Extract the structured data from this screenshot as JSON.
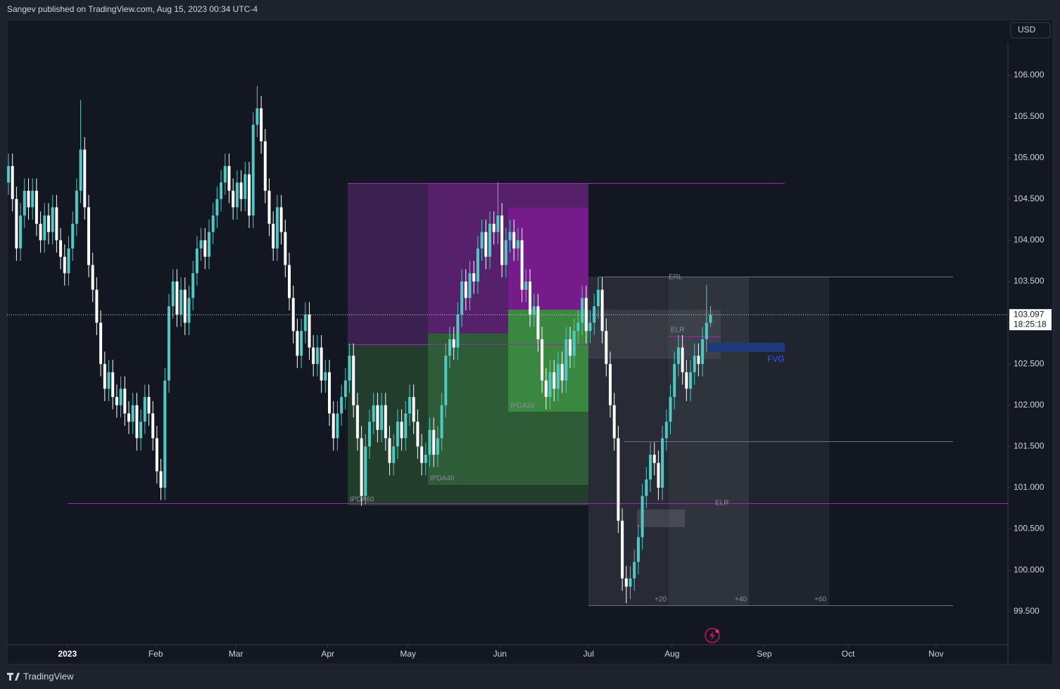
{
  "header": {
    "title": "Sangev published on TradingView.com, Aug 15, 2023 00:34 UTC-4"
  },
  "footer": {
    "brand": "TradingView"
  },
  "chart_data": {
    "type": "candlestick",
    "currency": "USD",
    "up_color": "#4fc9c4",
    "down_color": "#ffffff",
    "grid": false,
    "last_price": 103.097,
    "countdown": "18:25:18",
    "annotations": [
      "ERL",
      "ELR",
      "ELR",
      "FVG",
      "IPDA20",
      "IPDA40",
      "IPDA60",
      "+20",
      "+40",
      "+60"
    ],
    "xlim": [
      -0.35,
      249.12
    ],
    "xticks": [
      {
        "value": 14.7,
        "label": "2023"
      },
      {
        "value": 36.7,
        "label": "Feb"
      },
      {
        "value": 56.7,
        "label": "Mar"
      },
      {
        "value": 79.6,
        "label": "Apr"
      },
      {
        "value": 99.6,
        "label": "May"
      },
      {
        "value": 122.5,
        "label": "Jun"
      },
      {
        "value": 144.6,
        "label": "Jul"
      },
      {
        "value": 165.4,
        "label": "Aug"
      },
      {
        "value": 188.4,
        "label": "Sep"
      },
      {
        "value": 209.3,
        "label": "Oct"
      },
      {
        "value": 231.2,
        "label": "Nov"
      }
    ],
    "ylim": [
      99.097,
      106.674
    ],
    "yticks": [
      {
        "value": 99.5,
        "label": "99.500"
      },
      {
        "value": 100,
        "label": "100.000"
      },
      {
        "value": 100.5,
        "label": "100.500"
      },
      {
        "value": 101,
        "label": "101.000"
      },
      {
        "value": 101.5,
        "label": "101.500"
      },
      {
        "value": 102,
        "label": "102.000"
      },
      {
        "value": 102.5,
        "label": "102.500"
      },
      {
        "value": 103,
        "label": "103.000"
      },
      {
        "value": 103.5,
        "label": "103.500"
      },
      {
        "value": 104,
        "label": "104.000"
      },
      {
        "value": 104.5,
        "label": "104.500"
      },
      {
        "value": 105,
        "label": "105.000"
      },
      {
        "value": 105.5,
        "label": "105.500"
      },
      {
        "value": 106,
        "label": "106.000"
      }
    ],
    "open": [
      104.7,
      104.9,
      104.5,
      103.9,
      104.3,
      104.6,
      104.4,
      104.6,
      104.2,
      104.0,
      104.3,
      104.1,
      104.4,
      104.0,
      103.8,
      103.6,
      103.9,
      104.2,
      104.6,
      105.1,
      104.4,
      103.7,
      103.4,
      103.0,
      102.5,
      102.2,
      102.4,
      102.1,
      102.0,
      102.2,
      101.9,
      101.8,
      102.0,
      101.6,
      101.8,
      102.1,
      101.9,
      101.6,
      101.2,
      101.0,
      102.3,
      103.2,
      103.5,
      103.1,
      103.4,
      103.0,
      103.3,
      103.6,
      103.9,
      104.0,
      103.8,
      104.1,
      104.3,
      104.5,
      104.7,
      104.9,
      104.6,
      104.4,
      104.7,
      104.5,
      104.8,
      104.3,
      105.4,
      105.6,
      105.2,
      104.6,
      104.2,
      103.9,
      104.4,
      104.1,
      103.7,
      103.3,
      102.9,
      102.6,
      102.9,
      103.1,
      102.7,
      102.5,
      102.7,
      102.3,
      102.4,
      101.9,
      101.6,
      101.9,
      102.1,
      102.3,
      102.6,
      102.0,
      101.6,
      100.9,
      101.5,
      101.8,
      102.0,
      101.7,
      102.0,
      101.6,
      101.3,
      101.5,
      101.8,
      101.6,
      101.9,
      102.1,
      101.8,
      101.5,
      101.3,
      101.4,
      101.7,
      101.4,
      101.6,
      102.0,
      102.6,
      102.8,
      102.7,
      103.1,
      103.5,
      103.3,
      103.6,
      103.5,
      103.9,
      104.1,
      103.8,
      104.2,
      104.1,
      104.3,
      103.7,
      104.0,
      104.1,
      103.9,
      104.0,
      103.4,
      103.5,
      103.1,
      103.2,
      102.8,
      102.3,
      102.1,
      102.4,
      102.2,
      102.5,
      102.3,
      102.8,
      102.6,
      102.9,
      103.0,
      103.3,
      102.9,
      103.0,
      103.2,
      103.4,
      102.9,
      102.5,
      102.0,
      101.6,
      100.6,
      99.9,
      99.8,
      99.9,
      100.1,
      100.4,
      100.9,
      101.1,
      101.4,
      101.3,
      101.0,
      101.6,
      101.8,
      102.1,
      102.5,
      102.7,
      102.4,
      102.2,
      102.4,
      102.6,
      102.5,
      102.8,
      103.0
    ],
    "high": [
      105.05,
      105.05,
      104.65,
      104.45,
      104.75,
      104.75,
      104.75,
      104.75,
      104.35,
      104.45,
      104.45,
      104.55,
      104.55,
      104.15,
      103.95,
      104.05,
      104.35,
      104.75,
      105.7,
      105.25,
      104.55,
      103.85,
      103.55,
      103.15,
      102.65,
      102.55,
      102.55,
      102.25,
      102.35,
      102.35,
      102.05,
      102.15,
      102.15,
      101.95,
      102.25,
      102.25,
      102.05,
      101.75,
      101.35,
      102.45,
      103.35,
      103.65,
      103.65,
      103.55,
      103.55,
      103.45,
      103.75,
      104.05,
      104.15,
      104.15,
      104.25,
      104.45,
      104.65,
      104.85,
      105.05,
      105.05,
      104.75,
      104.85,
      104.85,
      104.95,
      104.95,
      105.55,
      105.87,
      105.75,
      105.35,
      104.75,
      104.35,
      104.55,
      104.55,
      104.25,
      103.85,
      103.45,
      103.05,
      103.05,
      103.25,
      103.25,
      102.85,
      102.85,
      102.85,
      102.55,
      102.55,
      102.05,
      102.05,
      102.25,
      102.45,
      102.75,
      102.75,
      102.15,
      101.75,
      101.65,
      101.95,
      102.15,
      102.15,
      102.15,
      102.15,
      101.75,
      101.65,
      101.95,
      101.95,
      102.05,
      102.25,
      102.25,
      101.95,
      101.65,
      101.55,
      101.85,
      101.85,
      101.75,
      102.15,
      102.75,
      102.95,
      102.95,
      103.25,
      103.65,
      103.65,
      103.75,
      103.75,
      104.05,
      104.25,
      104.25,
      104.35,
      104.35,
      104.7,
      104.45,
      104.15,
      104.25,
      104.25,
      104.15,
      104.15,
      103.65,
      103.65,
      103.35,
      103.35,
      102.95,
      102.45,
      102.55,
      102.55,
      102.65,
      102.65,
      102.95,
      102.95,
      103.05,
      103.15,
      103.45,
      103.45,
      103.15,
      103.35,
      103.55,
      103.55,
      103.05,
      102.65,
      102.15,
      101.75,
      100.75,
      100.05,
      100.05,
      100.25,
      100.55,
      101.05,
      101.25,
      101.55,
      101.55,
      101.45,
      101.75,
      101.95,
      102.25,
      102.65,
      102.85,
      102.85,
      102.55,
      102.55,
      102.75,
      102.75,
      102.95,
      103.46,
      103.2
    ],
    "low": [
      104.55,
      104.35,
      103.75,
      103.75,
      104.15,
      104.25,
      104.25,
      104.05,
      103.85,
      103.85,
      103.95,
      103.95,
      103.85,
      103.65,
      103.45,
      103.45,
      103.75,
      104.05,
      104.45,
      104.25,
      103.55,
      103.25,
      102.85,
      102.35,
      102.05,
      102.05,
      101.95,
      101.85,
      101.85,
      101.75,
      101.65,
      101.65,
      101.45,
      101.45,
      101.65,
      101.75,
      101.45,
      101.05,
      100.85,
      100.85,
      102.15,
      103.05,
      102.95,
      102.95,
      102.85,
      102.85,
      103.15,
      103.45,
      103.75,
      103.65,
      103.65,
      103.95,
      104.15,
      104.35,
      104.55,
      104.45,
      104.25,
      104.25,
      104.35,
      104.35,
      104.15,
      104.15,
      105.25,
      105.05,
      104.45,
      104.05,
      103.75,
      103.75,
      103.95,
      103.55,
      103.15,
      102.75,
      102.45,
      102.45,
      102.75,
      102.55,
      102.35,
      102.35,
      102.15,
      102.15,
      101.75,
      101.45,
      101.45,
      101.75,
      101.95,
      102.15,
      101.85,
      101.45,
      100.78,
      100.8,
      101.35,
      101.65,
      101.55,
      101.55,
      101.45,
      101.15,
      101.15,
      101.35,
      101.45,
      101.45,
      101.75,
      101.65,
      101.35,
      101.15,
      101.15,
      101.25,
      101.25,
      101.25,
      101.45,
      101.85,
      102.45,
      102.55,
      102.55,
      102.95,
      103.15,
      103.15,
      103.35,
      103.35,
      103.75,
      103.65,
      103.65,
      103.95,
      103.95,
      103.55,
      103.55,
      103.85,
      103.75,
      103.75,
      103.25,
      103.25,
      102.95,
      102.95,
      102.65,
      102.15,
      101.95,
      101.95,
      102.05,
      102.05,
      102.15,
      102.15,
      102.45,
      102.45,
      102.75,
      102.85,
      102.75,
      102.75,
      102.85,
      103.05,
      102.75,
      102.35,
      101.85,
      101.45,
      100.45,
      99.75,
      99.6,
      99.65,
      99.75,
      99.95,
      100.25,
      100.75,
      100.95,
      101.15,
      100.85,
      100.85,
      101.45,
      101.65,
      101.95,
      102.35,
      102.25,
      102.05,
      102.05,
      102.25,
      102.35,
      102.35,
      102.65,
      102.95
    ],
    "close": [
      104.9,
      104.5,
      103.9,
      104.3,
      104.6,
      104.4,
      104.6,
      104.2,
      104.0,
      104.3,
      104.1,
      104.4,
      104.0,
      103.8,
      103.6,
      103.9,
      104.2,
      104.6,
      105.1,
      104.4,
      103.7,
      103.4,
      103.0,
      102.5,
      102.2,
      102.4,
      102.1,
      102.0,
      102.2,
      101.9,
      101.8,
      102.0,
      101.6,
      101.8,
      102.1,
      101.9,
      101.6,
      101.2,
      101.0,
      102.3,
      103.2,
      103.5,
      103.1,
      103.4,
      103.0,
      103.3,
      103.6,
      103.9,
      104.0,
      103.8,
      104.1,
      104.3,
      104.5,
      104.7,
      104.9,
      104.6,
      104.4,
      104.7,
      104.5,
      104.8,
      104.3,
      105.4,
      105.6,
      105.2,
      104.6,
      104.2,
      103.9,
      104.4,
      104.1,
      103.7,
      103.3,
      102.9,
      102.6,
      102.9,
      103.1,
      102.7,
      102.5,
      102.7,
      102.3,
      102.4,
      101.9,
      101.6,
      101.9,
      102.1,
      102.3,
      102.6,
      102.0,
      101.6,
      100.9,
      101.5,
      101.8,
      102.0,
      101.7,
      102.0,
      101.6,
      101.3,
      101.5,
      101.8,
      101.6,
      101.9,
      102.1,
      101.8,
      101.5,
      101.3,
      101.4,
      101.7,
      101.4,
      101.6,
      102.0,
      102.6,
      102.8,
      102.7,
      103.1,
      103.5,
      103.3,
      103.6,
      103.5,
      103.9,
      104.1,
      103.8,
      104.2,
      104.1,
      104.3,
      103.7,
      104.0,
      104.1,
      103.9,
      104.0,
      103.4,
      103.5,
      103.1,
      103.2,
      102.8,
      102.3,
      102.1,
      102.4,
      102.2,
      102.5,
      102.3,
      102.8,
      102.6,
      102.9,
      103.0,
      103.3,
      102.9,
      103.0,
      103.2,
      103.4,
      102.9,
      102.5,
      102.0,
      101.6,
      100.6,
      99.9,
      99.8,
      99.9,
      100.1,
      100.4,
      100.9,
      101.1,
      101.4,
      101.3,
      101.0,
      101.6,
      101.8,
      102.1,
      102.5,
      102.7,
      102.4,
      102.2,
      102.4,
      102.6,
      102.5,
      102.8,
      103.0,
      103.097
    ]
  }
}
